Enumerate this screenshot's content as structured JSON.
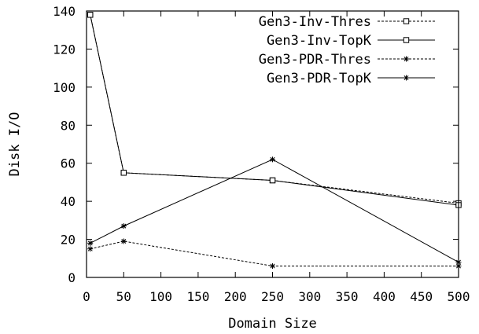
{
  "chart_data": {
    "type": "line",
    "title": "",
    "xlabel": "Domain Size",
    "ylabel": "Disk I/O",
    "xlim": [
      0,
      500
    ],
    "ylim": [
      0,
      140
    ],
    "xticks": [
      0,
      50,
      100,
      150,
      200,
      250,
      300,
      350,
      400,
      450,
      500
    ],
    "yticks": [
      0,
      20,
      40,
      60,
      80,
      100,
      120,
      140
    ],
    "xtick_labels": [
      "0",
      "50",
      "100",
      "150",
      "200",
      "250",
      "300",
      "350",
      "400",
      "450",
      "500"
    ],
    "ytick_labels": [
      "0",
      "20",
      "40",
      "60",
      "80",
      "100",
      "120",
      "140"
    ],
    "grid": false,
    "legend_position": "top-right",
    "x": [
      5,
      50,
      250,
      500
    ],
    "series": [
      {
        "name": "Gen3-Inv-Thres",
        "values": [
          138,
          55,
          51,
          39
        ],
        "dash": "dashed",
        "marker": "square",
        "color": "#000000"
      },
      {
        "name": "Gen3-Inv-TopK",
        "values": [
          138,
          55,
          51,
          38
        ],
        "dash": "solid",
        "marker": "square",
        "color": "#000000"
      },
      {
        "name": "Gen3-PDR-Thres",
        "values": [
          15,
          19,
          6,
          6
        ],
        "dash": "dashed",
        "marker": "star",
        "color": "#000000"
      },
      {
        "name": "Gen3-PDR-TopK",
        "values": [
          18,
          27,
          62,
          8
        ],
        "dash": "solid",
        "marker": "star",
        "color": "#000000"
      }
    ]
  }
}
